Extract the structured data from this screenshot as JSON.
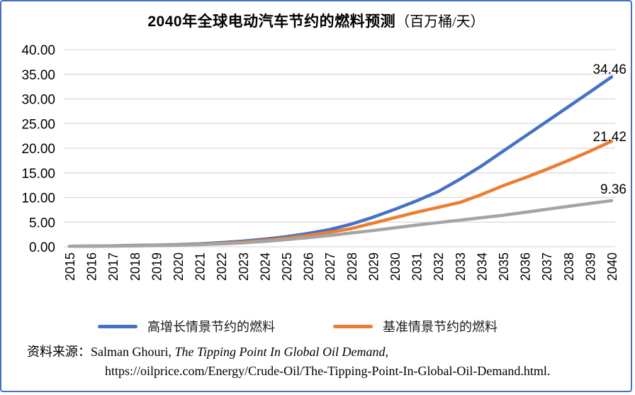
{
  "title": {
    "main": "2040年全球电动汽车节约的燃料预测",
    "unit": "（百万桶/天）"
  },
  "chart_data": {
    "type": "line",
    "x": [
      2015,
      2016,
      2017,
      2018,
      2019,
      2020,
      2021,
      2022,
      2023,
      2024,
      2025,
      2026,
      2027,
      2028,
      2029,
      2030,
      2031,
      2032,
      2033,
      2034,
      2035,
      2036,
      2037,
      2038,
      2039,
      2040
    ],
    "series": [
      {
        "name": "高增长情景节约的燃料",
        "color": "#4472C4",
        "end_label": "34.46",
        "values": [
          0.1,
          0.15,
          0.2,
          0.28,
          0.35,
          0.45,
          0.6,
          0.85,
          1.15,
          1.55,
          2.05,
          2.7,
          3.5,
          4.6,
          6.0,
          7.6,
          9.3,
          11.2,
          13.7,
          16.4,
          19.4,
          22.4,
          25.4,
          28.4,
          31.4,
          34.46
        ]
      },
      {
        "name": "基准情景节约的燃料",
        "color": "#ED7D31",
        "end_label": "21.42",
        "values": [
          0.1,
          0.13,
          0.17,
          0.22,
          0.28,
          0.38,
          0.5,
          0.7,
          0.95,
          1.3,
          1.75,
          2.3,
          2.95,
          3.7,
          4.8,
          5.9,
          7.0,
          8.0,
          9.0,
          10.6,
          12.4,
          14.0,
          15.7,
          17.5,
          19.4,
          21.42
        ]
      },
      {
        "name": "",
        "color": "#A5A5A5",
        "end_label": "9.36",
        "values": [
          0.1,
          0.12,
          0.15,
          0.2,
          0.25,
          0.33,
          0.45,
          0.6,
          0.8,
          1.1,
          1.45,
          1.85,
          2.3,
          2.8,
          3.3,
          3.85,
          4.4,
          4.9,
          5.4,
          5.9,
          6.4,
          7.0,
          7.6,
          8.2,
          8.8,
          9.36
        ]
      }
    ],
    "title": "2040年全球电动汽车节约的燃料预测（百万桶/天）",
    "xlabel": "",
    "ylabel": "",
    "ylim": [
      0,
      40
    ],
    "ytick_step": 5,
    "ytick_labels": [
      "0.00",
      "5.00",
      "10.00",
      "15.00",
      "20.00",
      "25.00",
      "30.00",
      "35.00",
      "40.00"
    ],
    "grid": true,
    "legend_position": "bottom"
  },
  "legend": {
    "items": [
      {
        "label": "高增长情景节约的燃料",
        "color": "#4472C4"
      },
      {
        "label": "基准情景节约的燃料",
        "color": "#ED7D31"
      }
    ]
  },
  "source": {
    "prefix": "资料来源：",
    "author": "Salman Ghouri, ",
    "work_italic": "The Tipping Point In Global Oil Demand,",
    "url_line": "https://oilprice.com/Energy/Crude-Oil/The-Tipping-Point-In-Global-Oil-Demand.html."
  },
  "colors": {
    "border": "#4472C4",
    "gridline": "#d9d9d9",
    "series_high": "#4472C4",
    "series_base": "#ED7D31",
    "series_gray": "#A5A5A5"
  }
}
